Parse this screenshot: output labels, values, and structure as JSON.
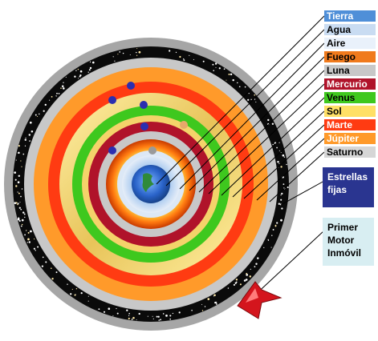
{
  "legend": [
    {
      "key": "tierra",
      "label": "Tierra",
      "bg": "#4f8fd8",
      "fg": "#ffffff"
    },
    {
      "key": "agua",
      "label": "Agua",
      "bg": "#c9dcf2",
      "fg": "#000000"
    },
    {
      "key": "aire",
      "label": "Aire",
      "bg": "#e9f1fb",
      "fg": "#000000"
    },
    {
      "key": "fuego",
      "label": "Fuego",
      "bg": "#f07a1c",
      "fg": "#000000"
    },
    {
      "key": "luna",
      "label": "Luna",
      "bg": "#c8c8c8",
      "fg": "#000000"
    },
    {
      "key": "mercurio",
      "label": "Mercurio",
      "bg": "#b0132a",
      "fg": "#ffffff"
    },
    {
      "key": "venus",
      "label": "Venus",
      "bg": "#3ec81e",
      "fg": "#000000"
    },
    {
      "key": "sol",
      "label": "Sol",
      "bg": "#ffe066",
      "fg": "#000000"
    },
    {
      "key": "marte",
      "label": "Marte",
      "bg": "#ff3b12",
      "fg": "#ffffff"
    },
    {
      "key": "jupiter",
      "label": "Júpiter",
      "bg": "#ff9a2a",
      "fg": "#ffffff"
    },
    {
      "key": "saturno",
      "label": "Saturno",
      "bg": "#d6d6d6",
      "fg": "#000000"
    }
  ],
  "estrellas": {
    "line1": "Estrellas",
    "line2": "fijas",
    "bg": "#2a3590",
    "fg": "#ffffff"
  },
  "primer_motor": {
    "line1": "Primer",
    "line2": "Motor",
    "line3": "Inmóvil",
    "bg": "#d8eef2",
    "fg": "#000000"
  }
}
